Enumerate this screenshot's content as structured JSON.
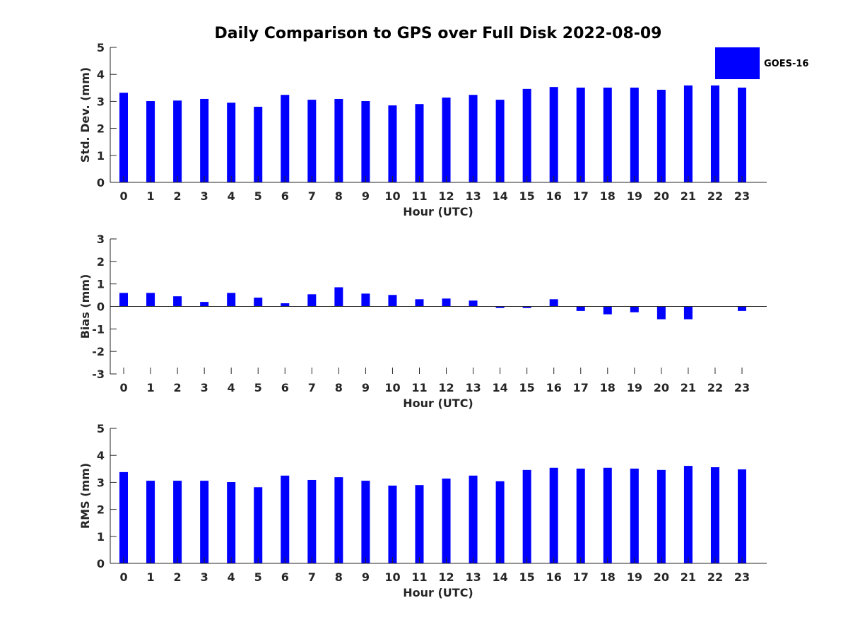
{
  "chart_data": [
    {
      "type": "bar",
      "title": "Daily Comparison to GPS over Full Disk 2022-08-09",
      "xlabel": "Hour (UTC)",
      "ylabel": "Std. Dev. (mm)",
      "ylim": [
        0,
        5
      ],
      "yticks": [
        0,
        1,
        2,
        3,
        4,
        5
      ],
      "categories": [
        0,
        1,
        2,
        3,
        4,
        5,
        6,
        7,
        8,
        9,
        10,
        11,
        12,
        13,
        14,
        15,
        16,
        17,
        18,
        19,
        20,
        21,
        22,
        23
      ],
      "series": [
        {
          "name": "GOES-16",
          "color": "#0000ff",
          "values": [
            3.32,
            3.01,
            3.03,
            3.09,
            2.95,
            2.8,
            3.24,
            3.06,
            3.09,
            3.01,
            2.85,
            2.9,
            3.14,
            3.24,
            3.06,
            3.46,
            3.53,
            3.51,
            3.51,
            3.51,
            3.43,
            3.59,
            3.59,
            3.51
          ]
        }
      ],
      "legend": {
        "position": "top-right",
        "entries": [
          "GOES-16"
        ]
      }
    },
    {
      "type": "bar",
      "xlabel": "Hour (UTC)",
      "ylabel": "Bias (mm)",
      "ylim": [
        -3,
        3
      ],
      "yticks": [
        -3,
        -2,
        -1,
        0,
        1,
        2,
        3
      ],
      "categories": [
        0,
        1,
        2,
        3,
        4,
        5,
        6,
        7,
        8,
        9,
        10,
        11,
        12,
        13,
        14,
        15,
        16,
        17,
        18,
        19,
        20,
        21,
        22,
        23
      ],
      "series": [
        {
          "name": "GOES-16",
          "color": "#0000ff",
          "values": [
            0.6,
            0.6,
            0.45,
            0.2,
            0.6,
            0.39,
            0.14,
            0.54,
            0.85,
            0.57,
            0.51,
            0.32,
            0.35,
            0.26,
            -0.07,
            -0.07,
            0.32,
            -0.2,
            -0.35,
            -0.26,
            -0.57,
            -0.57,
            0,
            -0.2
          ]
        }
      ]
    },
    {
      "type": "bar",
      "xlabel": "Hour (UTC)",
      "ylabel": "RMS (mm)",
      "ylim": [
        0,
        5
      ],
      "yticks": [
        0,
        1,
        2,
        3,
        4,
        5
      ],
      "categories": [
        0,
        1,
        2,
        3,
        4,
        5,
        6,
        7,
        8,
        9,
        10,
        11,
        12,
        13,
        14,
        15,
        16,
        17,
        18,
        19,
        20,
        21,
        22,
        23
      ],
      "series": [
        {
          "name": "GOES-16",
          "color": "#0000ff",
          "values": [
            3.38,
            3.06,
            3.06,
            3.06,
            3.01,
            2.82,
            3.25,
            3.09,
            3.19,
            3.06,
            2.88,
            2.9,
            3.14,
            3.25,
            3.04,
            3.46,
            3.54,
            3.51,
            3.54,
            3.51,
            3.46,
            3.61,
            3.56,
            3.48
          ]
        }
      ]
    }
  ]
}
